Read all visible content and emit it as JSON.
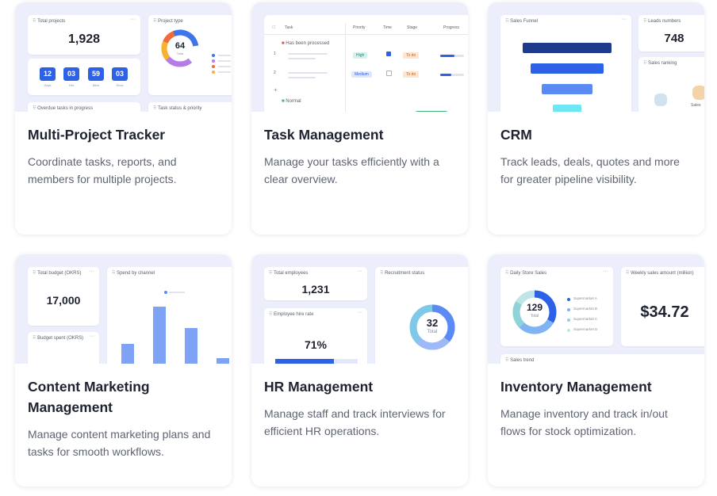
{
  "cards": [
    {
      "title": "Multi-Project Tracker",
      "description": "Coordinate tasks, reports, and members for multiple projects.",
      "preview": {
        "total_projects_label": "Total projects",
        "total_projects_value": "1,928",
        "project_type_label": "Project type",
        "donut_value": "64",
        "donut_caption": "Total",
        "timer": [
          "12",
          "03",
          "59",
          "03"
        ],
        "timer_labels": [
          "Days",
          "Hrs",
          "Mins",
          "Secs"
        ],
        "bottom_label_1": "Overdue tasks in progress",
        "bottom_label_2": "Task status & priority"
      }
    },
    {
      "title": "Task Management",
      "description": "Manage your tasks efficiently with a clear overview.",
      "preview": {
        "col_task": "Task",
        "col_priority": "Priority",
        "col_time": "Time",
        "col_stage": "Stage",
        "col_progress": "Progress",
        "group_1": "Has been processed",
        "group_2": "Normal",
        "row_1_num": "1",
        "row_2_num": "2",
        "priority_1": "High",
        "priority_2": "Medium",
        "stage_1": "To do",
        "stage_2": "To do",
        "add_symbol": "+"
      }
    },
    {
      "title": "CRM",
      "description": "Track leads, deals, quotes and more for greater pipeline visibility.",
      "preview": {
        "funnel_label": "Sales Funnel",
        "leads_label": "Leads numbers",
        "leads_value": "748",
        "ranking_label": "Sales ranking",
        "ranking_caption": "Sales"
      }
    },
    {
      "title": "Content Marketing Management",
      "description": "Manage content marketing plans and tasks for smooth workflows.",
      "preview": {
        "budget_label": "Total budget (OKRS)",
        "budget_value": "17,000",
        "budget_spent_label": "Budget spent (OKRS)",
        "spend_label": "Spend by channel",
        "bars": [
          0.3,
          0.88,
          0.55,
          0.08
        ]
      }
    },
    {
      "title": "HR Management",
      "description": "Manage staff and track interviews for efficient HR operations.",
      "preview": {
        "employees_label": "Total employees",
        "employees_value": "1,231",
        "hire_rate_label": "Employee hire rate",
        "hire_rate_value": "71%",
        "hire_rate": 0.71,
        "recruitment_label": "Recruitment status",
        "donut_value": "32",
        "donut_caption": "Total"
      }
    },
    {
      "title": "Inventory Management",
      "description": "Manage inventory and track in/out flows for stock optimization.",
      "preview": {
        "store_sales_label": "Daily Store Sales",
        "donut_value": "129",
        "donut_caption": "Total",
        "legend": [
          "Supermarket A",
          "Supermarket B",
          "Supermarket C",
          "Supermarket D"
        ],
        "weekly_label": "Weekly sales amount (million)",
        "weekly_value": "$34.72",
        "trend_label": "Sales trend"
      }
    }
  ],
  "colors": {
    "accent_blue": "#2d62e6",
    "preview_bg": "#eceefb",
    "funnel": [
      "#1e3a8a",
      "#2d62e6",
      "#5b8af5",
      "#6ee7f5"
    ]
  }
}
